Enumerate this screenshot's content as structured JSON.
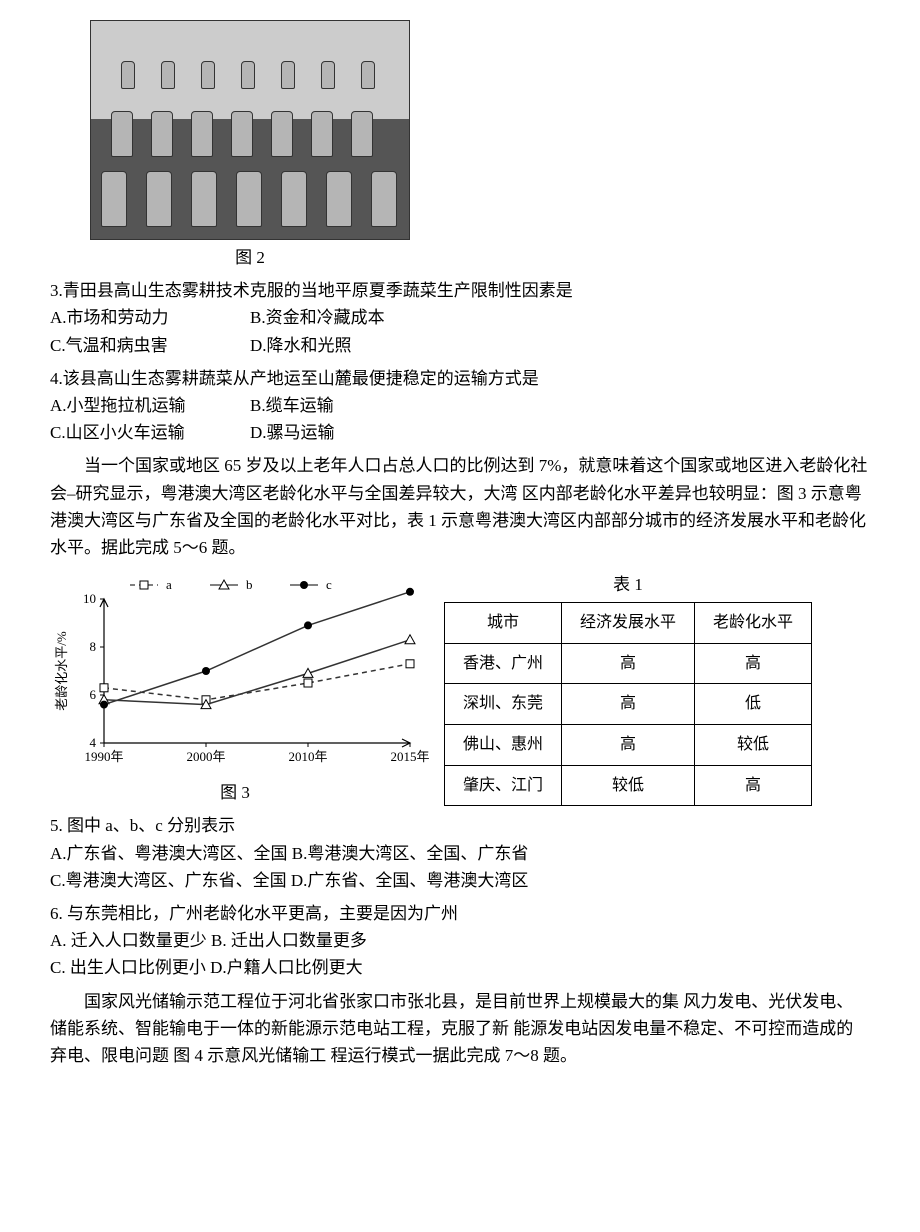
{
  "figure2": {
    "caption": "图 2"
  },
  "q3": {
    "stem": "3.青田县高山生态雾耕技术克服的当地平原夏季蔬菜生产限制性因素是",
    "A": "A.市场和劳动力",
    "B": "B.资金和冷藏成本",
    "C": "C.气温和病虫害",
    "D": "D.降水和光照"
  },
  "q4": {
    "stem": "4.该县高山生态雾耕蔬菜从产地运至山麓最便捷稳定的运输方式是",
    "A": "A.小型拖拉机运输",
    "B": "B.缆车运输",
    "C": "C.山区小火车运输",
    "D": "D.骡马运输"
  },
  "passage56": "当一个国家或地区 65 岁及以上老年人口占总人口的比例达到 7%，就意味着这个国家或地区进入老龄化社会–研究显示，粤港澳大湾区老龄化水平与全国差异较大，大湾 区内部老龄化水平差异也较明显：图 3 示意粤港澳大湾区与广东省及全国的老龄化水平对比，表 1 示意粤港澳大湾区内部部分城市的经济发展水平和老龄化水平。据此完成 5～6 题。",
  "chart3": {
    "caption": "图 3",
    "ylabel": "老龄化水平/%",
    "legend": {
      "a": "a",
      "b": "b",
      "c": "c"
    },
    "x_ticks": [
      "1990年",
      "2000年",
      "2010年",
      "2015年"
    ],
    "ylim": [
      4,
      10
    ],
    "y_ticks": [
      4,
      6,
      8,
      10
    ],
    "series": {
      "a": {
        "values": [
          6.3,
          5.8,
          6.5,
          7.3
        ],
        "color": "#333333",
        "dash": "5,4",
        "marker": "square"
      },
      "b": {
        "values": [
          5.8,
          5.6,
          6.9,
          8.3
        ],
        "color": "#333333",
        "dash": "none",
        "marker": "triangle"
      },
      "c": {
        "values": [
          5.6,
          7.0,
          8.9,
          10.3
        ],
        "color": "#333333",
        "dash": "none",
        "marker": "circle-filled"
      }
    },
    "bg": "#ffffff",
    "axis_color": "#000000",
    "grid_color": "#cccccc",
    "font_size_axis": 13
  },
  "table1": {
    "caption": "表 1",
    "headers": [
      "城市",
      "经济发展水平",
      "老龄化水平"
    ],
    "rows": [
      [
        "香港、广州",
        "高",
        "高"
      ],
      [
        "深圳、东莞",
        "高",
        "低"
      ],
      [
        "佛山、惠州",
        "高",
        "较低"
      ],
      [
        "肇庆、江门",
        "较低",
        "高"
      ]
    ]
  },
  "q5": {
    "stem": "5. 图中 a、b、c 分别表示",
    "A": "A.广东省、粤港澳大湾区、全国",
    "B": "B.粤港澳大湾区、全国、广东省",
    "C": "C.粤港澳大湾区、广东省、全国",
    "D": "D.广东省、全国、粤港澳大湾区"
  },
  "q6": {
    "stem": "6. 与东莞相比，广州老龄化水平更高，主要是因为广州",
    "A": "A. 迁入人口数量更少",
    "B": "B. 迁出人口数量更多",
    "C": "C. 出生人口比例更小",
    "D": "D.户籍人口比例更大"
  },
  "passage78": "国家风光储输示范工程位于河北省张家口市张北县，是目前世界上规模最大的集 风力发电、光伏发电、储能系统、智能输电于一体的新能源示范电站工程，克服了新 能源发电站因发电量不稳定、不可控而造成的弃电、限电问题 图 4 示意风光储输工 程运行模式一据此完成 7～8 题。"
}
